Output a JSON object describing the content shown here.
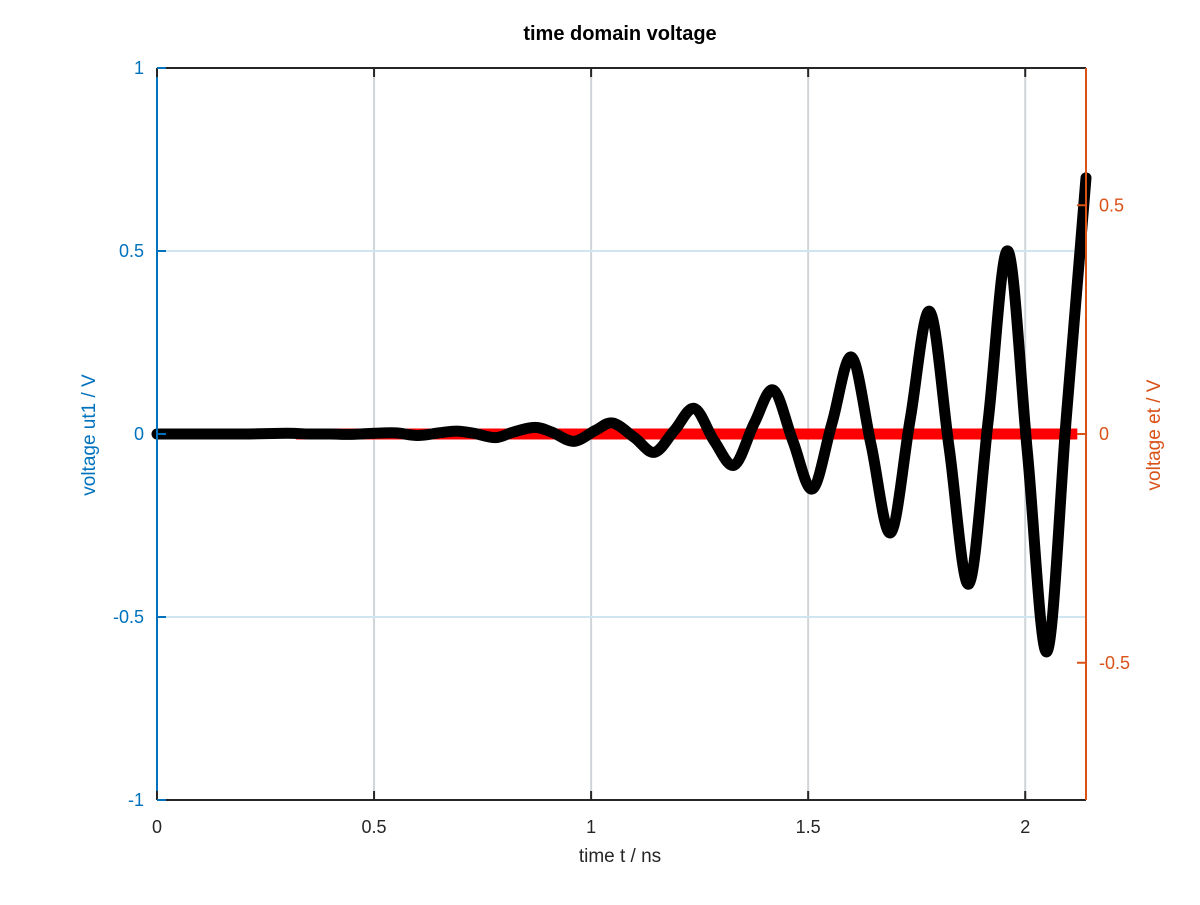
{
  "chart_data": {
    "type": "line",
    "title": "time domain voltage",
    "xlabel": "time t / ns",
    "ylabel_left": "voltage ut1 / V",
    "ylabel_right": "voltage et / V",
    "xlim": [
      0,
      2.14
    ],
    "ylim_left": [
      -1,
      1
    ],
    "ylim_right": [
      -0.8,
      0.8
    ],
    "x_ticks": [
      0,
      0.5,
      1,
      1.5,
      2
    ],
    "x_tick_labels": [
      "0",
      "0.5",
      "1",
      "1.5",
      "2"
    ],
    "y_left_ticks": [
      -1,
      -0.5,
      0,
      0.5,
      1
    ],
    "y_left_tick_labels": [
      "-1",
      "-0.5",
      "0",
      "0.5",
      "1"
    ],
    "y_right_ticks": [
      -0.5,
      0,
      0.5
    ],
    "y_right_tick_labels": [
      "-0.5",
      "0",
      "0.5"
    ],
    "grid": true,
    "colors": {
      "left_axis": "#0072BD",
      "right_axis": "#D95319",
      "ut1_line": "#000000",
      "et_line": "#ff0000",
      "grid_x": "#d0d4d8",
      "grid_y": "#cfe6f0",
      "box": "#262626"
    },
    "series": [
      {
        "axis": "left",
        "x": [
          0,
          0.1,
          0.2,
          0.3,
          0.35,
          0.4,
          0.45,
          0.5,
          0.55,
          0.6,
          0.65,
          0.69,
          0.73,
          0.78,
          0.82,
          0.87,
          0.91,
          0.96,
          1.01,
          1.05,
          1.1,
          1.146,
          1.192,
          1.238,
          1.284,
          1.33,
          1.376,
          1.42,
          1.465,
          1.51,
          1.555,
          1.6,
          1.645,
          1.69,
          1.735,
          1.78,
          1.825,
          1.87,
          1.915,
          1.96,
          2.005,
          2.05,
          2.095,
          2.14
        ],
        "values": [
          0,
          0,
          0,
          0.002,
          0,
          0,
          -0.001,
          0.002,
          0.003,
          -0.004,
          0.003,
          0.008,
          0.002,
          -0.01,
          0.005,
          0.018,
          0.005,
          -0.02,
          0.01,
          0.03,
          -0.01,
          -0.05,
          0.01,
          0.07,
          -0.02,
          -0.085,
          0.03,
          0.12,
          -0.02,
          -0.15,
          0.03,
          0.21,
          -0.03,
          -0.27,
          0.04,
          0.335,
          -0.04,
          -0.41,
          0.04,
          0.5,
          -0.05,
          -0.595,
          0.05,
          0.7
        ]
      },
      {
        "axis": "right",
        "x": [
          0.32,
          2.12
        ],
        "values": [
          0,
          0
        ]
      }
    ]
  }
}
